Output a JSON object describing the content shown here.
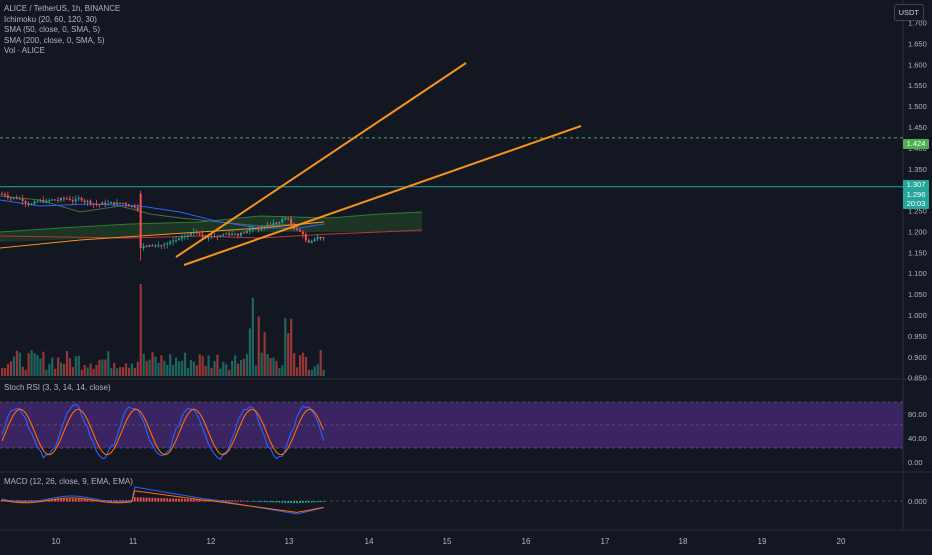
{
  "symbol": "ALICE / TetherUS, 1h, BINANCE",
  "indicators": [
    "Ichimoku (20, 60, 120, 30)",
    "SMA (50, close, 0, SMA, 5)",
    "SMA (200, close, 0, SMA, 5)",
    "Vol · ALICE"
  ],
  "currency": "USDT",
  "stoch_label": "Stoch RSI (3, 3, 14, 14, close)",
  "macd_label": "MACD (12, 26, close, 9, EMA, EMA)",
  "price_tags": {
    "alert": "1.424",
    "last": "1.307",
    "bid": "1.296",
    "countdown": "20:03"
  },
  "colors": {
    "background": "#131722",
    "up": "#26a69a",
    "down": "#ef5350",
    "trendline": "#f7931a",
    "stoch_band": "#4a2a78",
    "alert_line": "#4caf50"
  },
  "chart_data": {
    "type": "candlestick",
    "x_ticks": [
      "10",
      "11",
      "12",
      "13",
      "14",
      "15",
      "16",
      "17",
      "18",
      "19",
      "20"
    ],
    "y_ticks": [
      "1.700",
      "1.650",
      "1.600",
      "1.550",
      "1.500",
      "1.450",
      "1.400",
      "1.350",
      "1.250",
      "1.200",
      "1.150",
      "1.100",
      "1.050",
      "1.000",
      "0.950",
      "0.900",
      "0.850"
    ],
    "ylim": [
      0.83,
      1.73
    ],
    "stoch_ticks": [
      "80.00",
      "40.00",
      "0.00"
    ],
    "macd_ticks": [
      "0.000"
    ],
    "alert_level": 1.424,
    "last_price": 1.307
  }
}
